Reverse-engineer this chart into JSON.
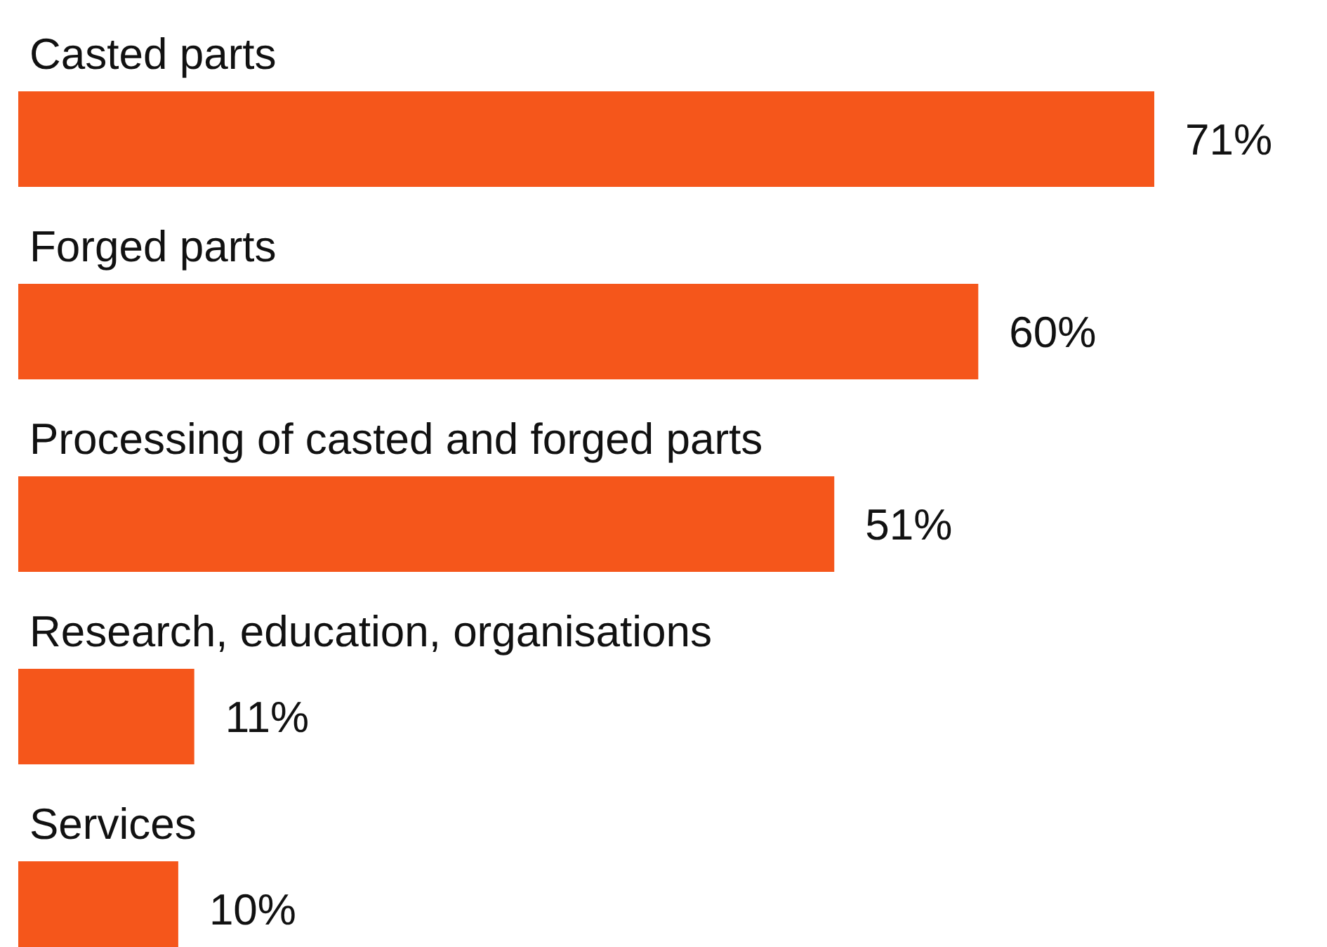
{
  "chart_data": {
    "type": "bar",
    "orientation": "horizontal",
    "categories": [
      "Casted parts",
      "Forged parts",
      "Processing of casted and forged parts",
      "Research, education, organisations",
      "Services"
    ],
    "values": [
      71,
      60,
      51,
      11,
      10
    ],
    "value_labels": [
      "71%",
      "60%",
      "51%",
      "11%",
      "10%"
    ],
    "color": "#f5561b"
  }
}
